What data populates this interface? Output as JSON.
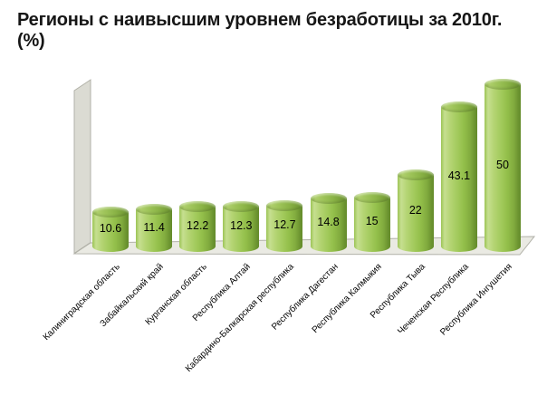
{
  "title": {
    "line1": "Регионы с наивысшим уровнем безработицы за 2010г.",
    "line2": "(%)"
  },
  "chart_data": {
    "type": "bar",
    "subtype": "3d-cylinder",
    "title": "Регионы с наивысшим уровнем безработицы за 2010г. (%)",
    "categories": [
      "Калиниградская область",
      "Забайкальский край",
      "Курганская область",
      "Республика Алтай",
      "Кабардино-Балкарская республика",
      "Республика Дагестан",
      "Республика Калмыкия",
      "Республика Тыва",
      "Чеченская Республика",
      "Республика Ингушетия"
    ],
    "values": [
      10.6,
      11.4,
      12.2,
      12.3,
      12.7,
      14.8,
      15,
      22,
      43.1,
      50
    ],
    "value_labels": [
      "10.6",
      "11.4",
      "12.2",
      "12.3",
      "12.7",
      "14.8",
      "15",
      "22",
      "43.1",
      "50"
    ],
    "xlabel": "",
    "ylabel": "",
    "ylim": [
      0,
      50
    ],
    "grid": false,
    "legend": false,
    "axes_visible": false,
    "category_label_rotation_deg": 45,
    "data_labels_position": "center",
    "colors": {
      "bar_fill": "#9fc854",
      "bar_highlight": "#c6df90",
      "bar_shadow": "#668e2b",
      "wall": "#dbdbd3",
      "floor": "#eaeae3",
      "outline": "#b1b1a8",
      "text": "#000000",
      "title_text": "#161616",
      "background": "#ffffff"
    }
  }
}
